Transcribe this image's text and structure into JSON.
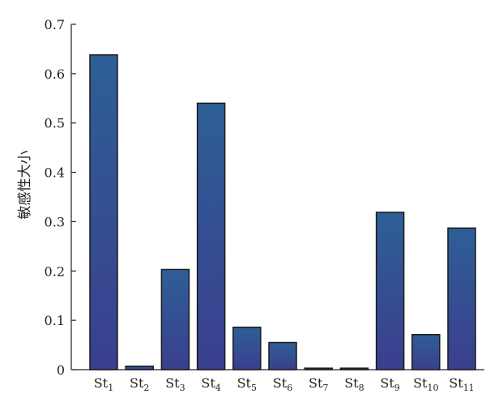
{
  "chart_data": {
    "type": "bar",
    "categories": [
      {
        "base": "St",
        "sub": "1"
      },
      {
        "base": "St",
        "sub": "2"
      },
      {
        "base": "St",
        "sub": "3"
      },
      {
        "base": "St",
        "sub": "4"
      },
      {
        "base": "St",
        "sub": "5"
      },
      {
        "base": "St",
        "sub": "6"
      },
      {
        "base": "St",
        "sub": "7"
      },
      {
        "base": "St",
        "sub": "8"
      },
      {
        "base": "St",
        "sub": "9"
      },
      {
        "base": "St",
        "sub": "10"
      },
      {
        "base": "St",
        "sub": "11"
      }
    ],
    "values": [
      0.638,
      0.007,
      0.203,
      0.54,
      0.086,
      0.055,
      0.003,
      0.003,
      0.319,
      0.071,
      0.287
    ],
    "ylabel": "敏感性大小",
    "ylim": [
      0,
      0.7
    ],
    "yticks": [
      "0",
      "0.1",
      "0.2",
      "0.3",
      "0.4",
      "0.5",
      "0.6",
      "0.7"
    ],
    "grid": false,
    "bar_color_top": "#2e5f96",
    "bar_color_bottom": "#3a3f8e",
    "bar_stroke": "#1a1a1a"
  }
}
